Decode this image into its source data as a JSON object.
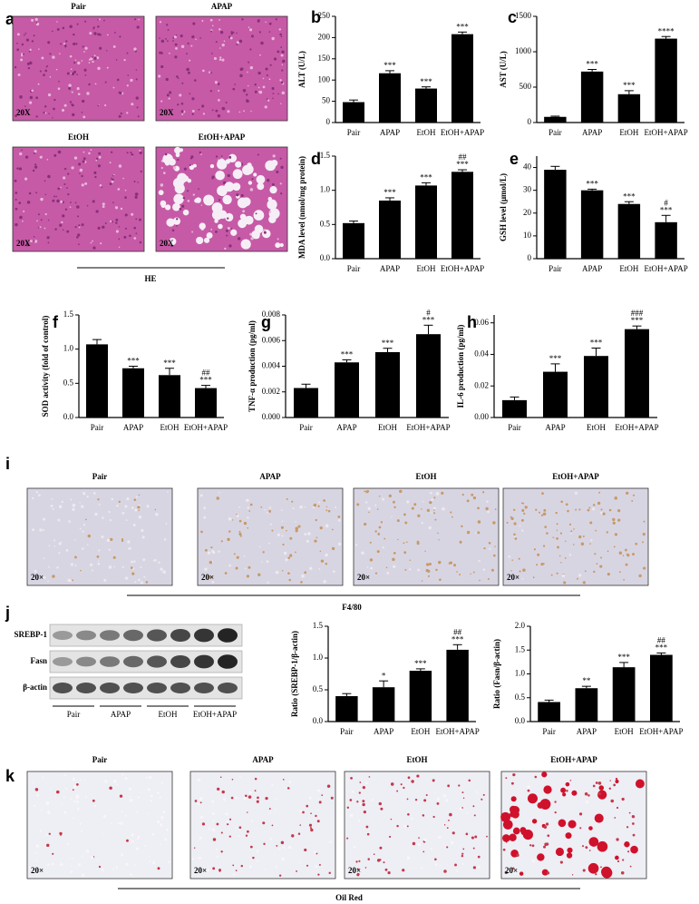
{
  "panel_letters": [
    "a",
    "b",
    "c",
    "d",
    "e",
    "f",
    "g",
    "h",
    "i",
    "j",
    "k"
  ],
  "micrographs": [
    {
      "images": [
        {
          "label": "Pair",
          "magnification": "20X"
        },
        {
          "label": "APAP",
          "magnification": "20X"
        },
        {
          "label": "EtOH",
          "magnification": "20X"
        },
        {
          "label": "EtOH+APAP",
          "magnification": "20X"
        }
      ],
      "caption": "HE"
    },
    {
      "images": [
        {
          "label": "Pair",
          "magnification": "20×"
        },
        {
          "label": "APAP",
          "magnification": "20×"
        },
        {
          "label": "EtOH",
          "magnification": "20×"
        },
        {
          "label": "EtOH+APAP",
          "magnification": "20×"
        }
      ],
      "caption": "F4/80"
    },
    {
      "images": [
        {
          "label": "Pair",
          "magnification": "20×"
        },
        {
          "label": "APAP",
          "magnification": "20×"
        },
        {
          "label": "EtOH",
          "magnification": "20×"
        },
        {
          "label": "EtOH+APAP",
          "magnification": "20×"
        }
      ],
      "caption": "Oil Red"
    }
  ],
  "blot": {
    "rows": [
      "SREBP-1",
      "Fasn",
      "β-actin"
    ],
    "groups": [
      "Pair",
      "APAP",
      "EtOH",
      "EtOH+APAP"
    ]
  },
  "chart_data": [
    {
      "type": "bar",
      "ylabel": "ALT (U/L)",
      "categories": [
        "Pair",
        "APAP",
        "EtOH",
        "EtOH+APAP"
      ],
      "values": [
        48,
        116,
        80,
        208
      ],
      "errors": [
        5,
        6,
        4,
        5
      ],
      "color": "#000000",
      "ylim": [
        0,
        250
      ],
      "yticks": [
        0,
        50,
        100,
        150,
        200,
        250
      ],
      "annotations": [
        null,
        "***",
        "***",
        "***"
      ]
    },
    {
      "type": "bar",
      "ylabel": "AST (U/L)",
      "categories": [
        "Pair",
        "APAP",
        "EtOH",
        "EtOH+APAP"
      ],
      "values": [
        80,
        720,
        400,
        1185
      ],
      "errors": [
        10,
        30,
        50,
        30
      ],
      "color": "#000000",
      "ylim": [
        0,
        1500
      ],
      "yticks": [
        0,
        500,
        1000,
        1500
      ],
      "annotations": [
        null,
        "***",
        "***",
        "****"
      ]
    },
    {
      "type": "bar",
      "ylabel": "MDA level (nmol/mg protein)",
      "categories": [
        "Pair",
        "APAP",
        "EtOH",
        "EtOH+APAP"
      ],
      "values": [
        0.52,
        0.85,
        1.07,
        1.27
      ],
      "errors": [
        0.03,
        0.04,
        0.04,
        0.03
      ],
      "color": "#000000",
      "ylim": [
        0,
        1.5
      ],
      "yticks": [
        {
          "value": 0,
          "label": "0.0"
        },
        0.5,
        {
          "value": 1,
          "label": "1.0"
        },
        1.5
      ],
      "annotations": [
        null,
        "***",
        "***",
        "***"
      ],
      "annotations2": [
        null,
        null,
        null,
        "##"
      ]
    },
    {
      "type": "bar",
      "ylabel": "GSH level (μmol/L)",
      "categories": [
        "Pair",
        "APAP",
        "EtOH",
        "EtOH+APAP"
      ],
      "values": [
        39,
        30,
        24,
        16
      ],
      "errors": [
        1.5,
        0.5,
        1,
        3
      ],
      "color": "#000000",
      "ylim": [
        0,
        45
      ],
      "yticks": [
        0,
        10,
        20,
        30,
        40
      ],
      "annotations": [
        null,
        "***",
        "***",
        "***"
      ],
      "annotations2": [
        null,
        null,
        null,
        "#"
      ]
    },
    {
      "type": "bar",
      "ylabel": "SOD activity (fold of control)",
      "categories": [
        "Pair",
        "APAP",
        "EtOH",
        "EtOH+APAP"
      ],
      "values": [
        1.07,
        0.72,
        0.62,
        0.43
      ],
      "errors": [
        0.07,
        0.03,
        0.1,
        0.04
      ],
      "color": "#000000",
      "ylim": [
        0,
        1.5
      ],
      "yticks": [
        {
          "value": 0,
          "label": "0.0"
        },
        0.5,
        {
          "value": 1,
          "label": "1.0"
        },
        1.5
      ],
      "annotations": [
        null,
        "***",
        "***",
        "***"
      ],
      "annotations2": [
        null,
        null,
        null,
        "##"
      ]
    },
    {
      "type": "bar",
      "ylabel": "TNF-α production (pg/ml)",
      "categories": [
        "Pair",
        "APAP",
        "EtOH",
        "EtOH+APAP"
      ],
      "values": [
        0.0023,
        0.0043,
        0.0051,
        0.0065
      ],
      "errors": [
        0.0003,
        0.0002,
        0.0003,
        0.0007
      ],
      "color": "#000000",
      "ylim": [
        0,
        0.008
      ],
      "yticks": [
        {
          "value": 0,
          "label": "0.000"
        },
        {
          "value": 0.002,
          "label": "0.002"
        },
        {
          "value": 0.004,
          "label": "0.004"
        },
        {
          "value": 0.006,
          "label": "0.006"
        },
        {
          "value": 0.008,
          "label": "0.008"
        }
      ],
      "annotations": [
        null,
        "***",
        "***",
        "***"
      ],
      "annotations2": [
        null,
        null,
        null,
        "#"
      ]
    },
    {
      "type": "bar",
      "ylabel": "IL-6 production (pg/ml)",
      "categories": [
        "Pair",
        "APAP",
        "EtOH",
        "EtOH+APAP"
      ],
      "values": [
        0.011,
        0.029,
        0.039,
        0.056
      ],
      "errors": [
        0.002,
        0.005,
        0.005,
        0.002
      ],
      "color": "#000000",
      "ylim": [
        0,
        0.065
      ],
      "yticks": [
        {
          "value": 0,
          "label": "0.00"
        },
        {
          "value": 0.02,
          "label": "0.02"
        },
        {
          "value": 0.04,
          "label": "0.04"
        },
        {
          "value": 0.06,
          "label": "0.06"
        }
      ],
      "annotations": [
        null,
        "***",
        "***",
        "***"
      ],
      "annotations2": [
        null,
        null,
        null,
        "###"
      ]
    },
    {
      "type": "bar",
      "ylabel": "Ratio (SREBP-1/β-actin)",
      "categories": [
        "Pair",
        "APAP",
        "EtOH",
        "EtOH+APAP"
      ],
      "values": [
        0.4,
        0.54,
        0.8,
        1.13
      ],
      "errors": [
        0.04,
        0.1,
        0.03,
        0.08
      ],
      "color": "#000000",
      "ylim": [
        0,
        1.5
      ],
      "yticks": [
        {
          "value": 0,
          "label": "0.0"
        },
        0.5,
        {
          "value": 1,
          "label": "1.0"
        },
        1.5
      ],
      "annotations": [
        null,
        "*",
        "***",
        "***"
      ],
      "annotations2": [
        null,
        null,
        null,
        "##"
      ]
    },
    {
      "type": "bar",
      "ylabel": "Ratio (Fasn/β-actin)",
      "categories": [
        "Pair",
        "APAP",
        "EtOH",
        "EtOH+APAP"
      ],
      "values": [
        0.41,
        0.7,
        1.14,
        1.4
      ],
      "errors": [
        0.04,
        0.04,
        0.1,
        0.04
      ],
      "color": "#000000",
      "ylim": [
        0,
        2
      ],
      "yticks": [
        {
          "value": 0,
          "label": "0.0"
        },
        0.5,
        {
          "value": 1,
          "label": "1.0"
        },
        1.5,
        {
          "value": 2,
          "label": "2.0"
        }
      ],
      "annotations": [
        null,
        "**",
        "***",
        "***"
      ],
      "annotations2": [
        null,
        null,
        null,
        "##"
      ]
    }
  ]
}
